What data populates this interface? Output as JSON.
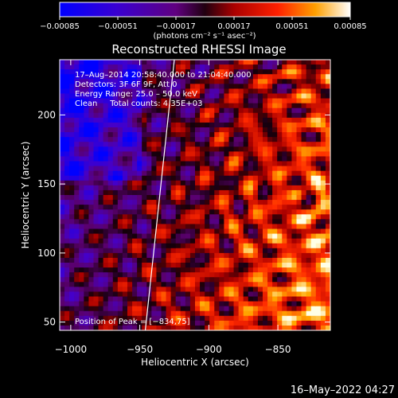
{
  "chart_data": {
    "type": "heatmap",
    "title": "Reconstructed RHESSI Image",
    "xlabel": "Heliocentric X (arcsec)",
    "ylabel": "Heliocentric Y (arcsec)",
    "xlim": [
      -1008,
      -812
    ],
    "ylim": [
      44,
      240
    ],
    "x_ticks": [
      -1000,
      -950,
      -900,
      -850
    ],
    "x_tick_labels": [
      "−1000",
      "−950",
      "−900",
      "−850"
    ],
    "y_ticks": [
      50,
      100,
      150,
      200
    ],
    "y_tick_labels": [
      "50",
      "100",
      "150",
      "200"
    ],
    "colorbar": {
      "min": -0.00085,
      "max": 0.00085,
      "ticks": [
        -0.00085,
        -0.00051,
        -0.00017,
        0.00017,
        0.00051,
        0.00085
      ],
      "tick_labels": [
        "−0.00085",
        "−0.00051",
        "−0.00017",
        "0.00017",
        "0.00051",
        "0.00085"
      ],
      "unit_label": "(photons cm⁻² s⁻¹ asec⁻²)"
    },
    "info_lines": [
      "17–Aug–2014 20:58:40.000 to 21:04:40.000",
      "Detectors: 3F 6F 9F, Att 0",
      "Energy Range: 25.0 – 50.0 keV",
      "Clean     Total counts: 4.35E+03"
    ],
    "peak_label": "Position of Peak = [−834,75]",
    "peak_position": [
      -834,
      75
    ],
    "limb_line": {
      "x": [
        -946,
        -925
      ],
      "y": [
        44,
        240
      ],
      "color": "#ffffff"
    },
    "grid": false
  },
  "datestamp": "16–May–2022 04:27"
}
